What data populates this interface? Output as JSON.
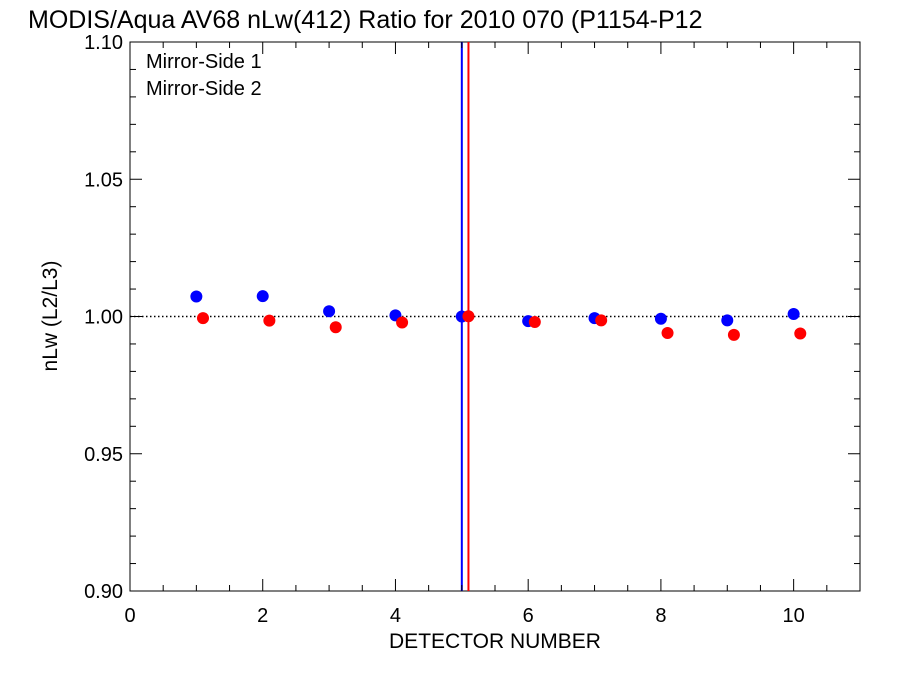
{
  "chart_data": {
    "type": "scatter",
    "title": "MODIS/Aqua AV68 nLw(412) Ratio for 2010 070 (P1154-P12",
    "xlabel": "DETECTOR NUMBER",
    "ylabel": "nLw (L2/L3)",
    "xlim": [
      0,
      11
    ],
    "ylim": [
      0.9,
      1.1
    ],
    "x_ticks": [
      0,
      2,
      4,
      6,
      8,
      10
    ],
    "x_tick_labels": [
      "0",
      "2",
      "4",
      "6",
      "8",
      "10"
    ],
    "y_ticks": [
      0.9,
      0.95,
      1.0,
      1.05,
      1.1
    ],
    "y_tick_labels": [
      "0.90",
      "0.95",
      "1.00",
      "1.05",
      "1.10"
    ],
    "reference_line": {
      "y": 1.0,
      "style": "dotted",
      "color": "#000000"
    },
    "vertical_lines": [
      {
        "x": 5.0,
        "color": "#0000ff"
      },
      {
        "x": 5.1,
        "color": "#ff0000"
      }
    ],
    "legend_position": "top-left",
    "series": [
      {
        "name": "Mirror-Side 1",
        "color": "#0000ff",
        "x": [
          1,
          2,
          3,
          4,
          5,
          6,
          7,
          8,
          9,
          10
        ],
        "values": [
          1.0073,
          1.0074,
          1.0019,
          1.0004,
          1.0,
          0.9983,
          0.9994,
          0.9992,
          0.9986,
          1.0009
        ]
      },
      {
        "name": "Mirror-Side 2",
        "color": "#ff0000",
        "x": [
          1.1,
          2.1,
          3.1,
          4.1,
          5.1,
          6.1,
          7.1,
          8.1,
          9.1,
          10.1
        ],
        "values": [
          0.9994,
          0.9985,
          0.9961,
          0.9978,
          1.0001,
          0.998,
          0.9986,
          0.994,
          0.9933,
          0.9938
        ]
      }
    ]
  }
}
